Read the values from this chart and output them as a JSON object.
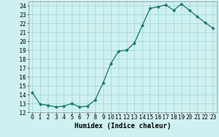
{
  "x": [
    0,
    1,
    2,
    3,
    4,
    5,
    6,
    7,
    8,
    9,
    10,
    11,
    12,
    13,
    14,
    15,
    16,
    17,
    18,
    19,
    20,
    21,
    22,
    23
  ],
  "y": [
    14.2,
    12.9,
    12.8,
    12.6,
    12.7,
    13.0,
    12.6,
    12.7,
    13.4,
    15.3,
    17.5,
    18.9,
    19.0,
    19.8,
    21.8,
    23.7,
    23.9,
    24.1,
    23.5,
    24.2,
    23.5,
    22.8,
    22.1,
    21.5
  ],
  "line_color": "#1a7a6e",
  "marker_color": "#1a7a6e",
  "bg_color": "#cff0f0",
  "grid_color": "#a0d8d8",
  "xlabel": "Humidex (Indice chaleur)",
  "xlim": [
    -0.5,
    23.5
  ],
  "ylim": [
    12,
    24.5
  ],
  "yticks": [
    12,
    13,
    14,
    15,
    16,
    17,
    18,
    19,
    20,
    21,
    22,
    23,
    24
  ],
  "xticks": [
    0,
    1,
    2,
    3,
    4,
    5,
    6,
    7,
    8,
    9,
    10,
    11,
    12,
    13,
    14,
    15,
    16,
    17,
    18,
    19,
    20,
    21,
    22,
    23
  ],
  "xtick_labels": [
    "0",
    "1",
    "2",
    "3",
    "4",
    "5",
    "6",
    "7",
    "8",
    "9",
    "10",
    "11",
    "12",
    "13",
    "14",
    "15",
    "16",
    "17",
    "18",
    "19",
    "20",
    "21",
    "22",
    "23"
  ],
  "tick_fontsize": 6,
  "xlabel_fontsize": 7,
  "linewidth": 1.0,
  "markersize": 2.5
}
